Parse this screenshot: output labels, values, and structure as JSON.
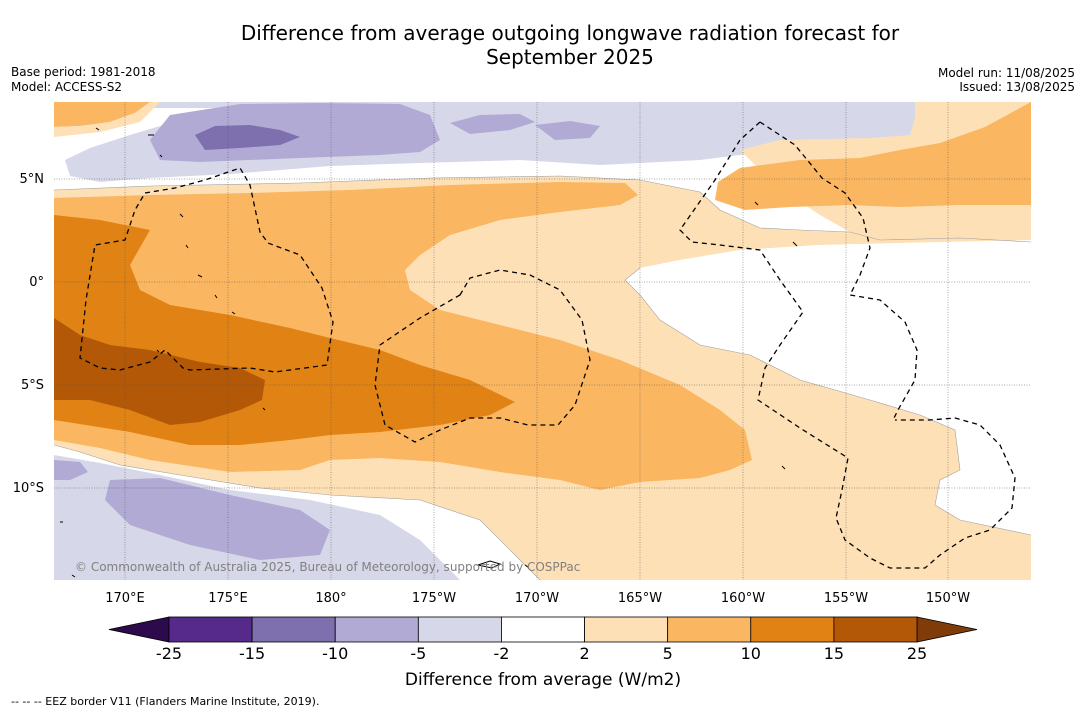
{
  "title": {
    "line1": "Difference from average outgoing longwave radiation forecast for",
    "line2": "September 2025"
  },
  "meta": {
    "base_period": "Base period: 1981-2018",
    "model": "Model: ACCESS-S2",
    "model_run": "Model run: 11/08/2025",
    "issued": "Issued: 13/08/2025"
  },
  "axes": {
    "lon_ticks": [
      "170°E",
      "175°E",
      "180°",
      "175°W",
      "170°W",
      "165°W",
      "160°W",
      "155°W",
      "150°W"
    ],
    "lat_ticks": [
      "5°N",
      "0°",
      "5°S",
      "10°S"
    ]
  },
  "copyright": "© Commonwealth of Australia 2025, Bureau of Meteorology, supported by COSPPac",
  "colorbar": {
    "title": "Difference from average (W/m2)",
    "labels": [
      "-25",
      "-15",
      "-10",
      "-5",
      "-2",
      "2",
      "5",
      "10",
      "15",
      "25"
    ],
    "colors": [
      "#562a8a",
      "#7e6fae",
      "#b0aad4",
      "#d7d7ea",
      "#ffffff",
      "#fee0b6",
      "#fbb661",
      "#e08214",
      "#b35806"
    ],
    "low_extend_color": "#2d0a4b",
    "high_extend_color": "#7f3b08"
  },
  "footnote": "-- -- -- EEZ border V11 (Flanders Marine Institute, 2019)."
}
